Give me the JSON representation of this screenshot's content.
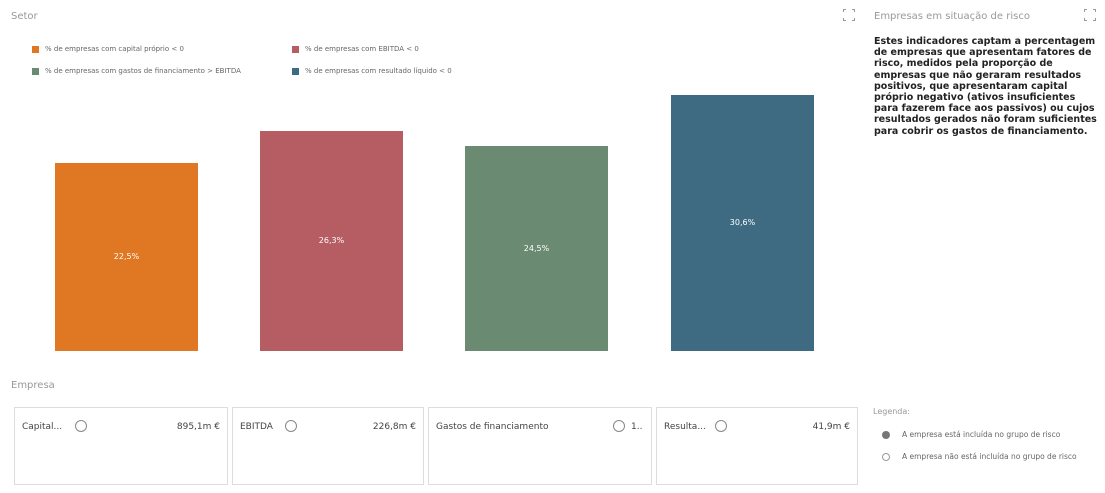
{
  "sector": {
    "title": "Setor",
    "legend": [
      {
        "label": "% de empresas com capital próprio < 0",
        "color": "#e07722"
      },
      {
        "label": "% de empresas com EBITDA < 0",
        "color": "#b65d63"
      },
      {
        "label": "% de empresas com gastos de financiamento > EBITDA",
        "color": "#6b8a72"
      },
      {
        "label": "% de empresas com resultado líquido < 0",
        "color": "#3e6b82"
      }
    ]
  },
  "chart_data": {
    "type": "bar",
    "categories": [
      "% de empresas com capital próprio < 0",
      "% de empresas com EBITDA < 0",
      "% de empresas com gastos de financiamento > EBITDA",
      "% de empresas com resultado líquido < 0"
    ],
    "values": [
      22.5,
      26.3,
      24.5,
      30.6
    ],
    "labels": [
      "22,5%",
      "26,3%",
      "24,5%",
      "30,6%"
    ],
    "colors": [
      "#e07722",
      "#b65d63",
      "#6b8a72",
      "#3e6b82"
    ],
    "ylim": [
      0,
      36.6
    ],
    "grid": false,
    "legend": "top-left"
  },
  "risk": {
    "title": "Empresas em situação de risco",
    "text": "Estes indicadores captam a percentagem de empresas que apresentam fatores de risco, medidos pela proporção de empresas que não geraram resultados positivos, que apresentaram capital próprio negativo (ativos insuficientes para fazerem face aos passivos) ou cujos resultados gerados não foram suficientes para cobrir os gastos de financiamento."
  },
  "company": {
    "title": "Empresa",
    "cards": [
      {
        "name": "Capital...",
        "value": "895,1m €"
      },
      {
        "name": "EBITDA",
        "value": "226,8m €"
      },
      {
        "name": "Gastos de financiamento",
        "value": "1.."
      },
      {
        "name": "Resulta...",
        "value": "41,9m €"
      }
    ]
  },
  "legend_panel": {
    "title": "Legenda:",
    "in_group": "A empresa está incluída no grupo de risco",
    "not_in_group": "A empresa não está incluída no grupo de risco"
  }
}
